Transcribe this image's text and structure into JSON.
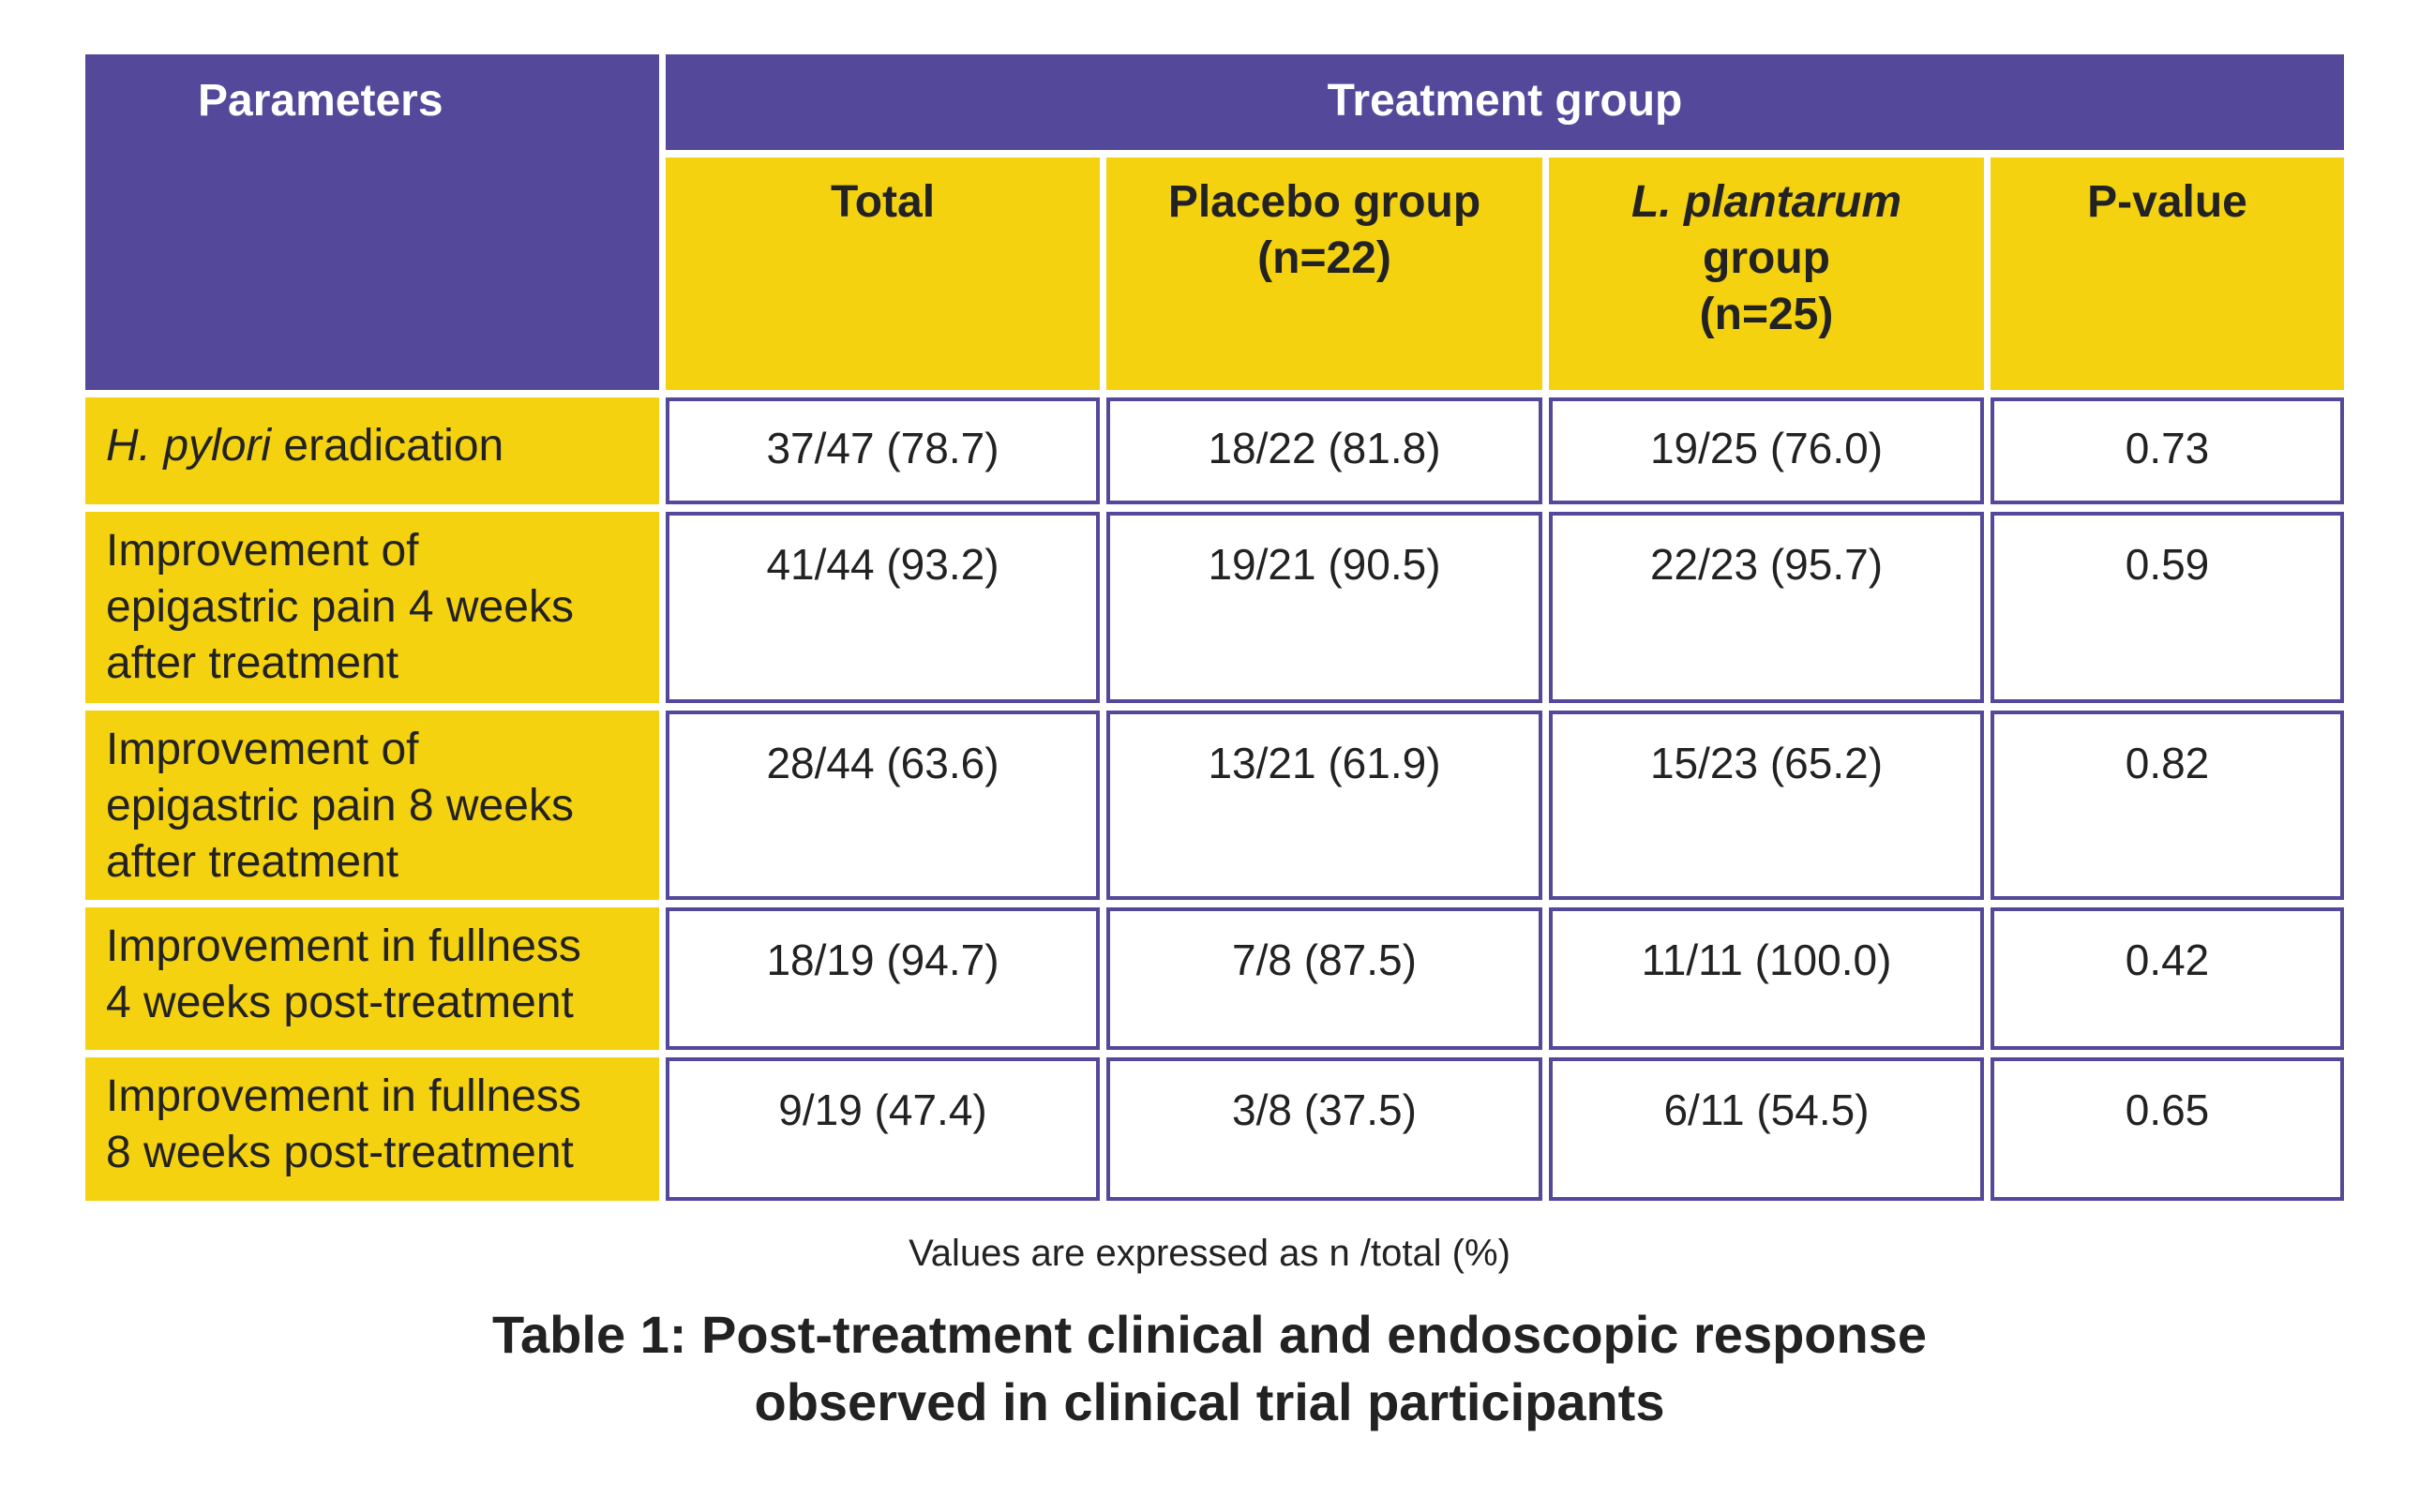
{
  "table": {
    "header": {
      "parameters": "Parameters",
      "treatment_group": "Treatment group",
      "columns": [
        [
          "Total"
        ],
        [
          "Placebo group",
          "(n=22)"
        ],
        [
          "L. plantarum",
          "group",
          "(n=25)"
        ],
        [
          "P-value"
        ]
      ]
    },
    "rows": [
      {
        "label": [
          "H. pylori",
          "eradication"
        ],
        "values": [
          "37/47 (78.7)",
          "18/22 (81.8)",
          "19/25 (76.0)",
          "0.73"
        ]
      },
      {
        "label": [
          "Improvement of",
          "epigastric pain 4 weeks",
          "after treatment"
        ],
        "values": [
          "41/44 (93.2)",
          "19/21 (90.5)",
          "22/23 (95.7)",
          "0.59"
        ]
      },
      {
        "label": [
          "Improvement of",
          "epigastric pain 8 weeks",
          "after treatment"
        ],
        "values": [
          "28/44 (63.6)",
          "13/21 (61.9)",
          "15/23 (65.2)",
          "0.82"
        ]
      },
      {
        "label": [
          "Improvement in fullness",
          "4 weeks post-treatment"
        ],
        "values": [
          "18/19 (94.7)",
          "7/8 (87.5)",
          "11/11 (100.0)",
          "0.42"
        ]
      },
      {
        "label": [
          "Improvement in fullness",
          "8 weeks post-treatment"
        ],
        "values": [
          "9/19 (47.4)",
          "3/8 (37.5)",
          "6/11 (54.5)",
          "0.65"
        ]
      }
    ]
  },
  "footnote": "Values are expressed as n /total (%)",
  "caption": [
    "Table 1: Post-treatment clinical and endoscopic response",
    "observed in clinical trial participants"
  ]
}
